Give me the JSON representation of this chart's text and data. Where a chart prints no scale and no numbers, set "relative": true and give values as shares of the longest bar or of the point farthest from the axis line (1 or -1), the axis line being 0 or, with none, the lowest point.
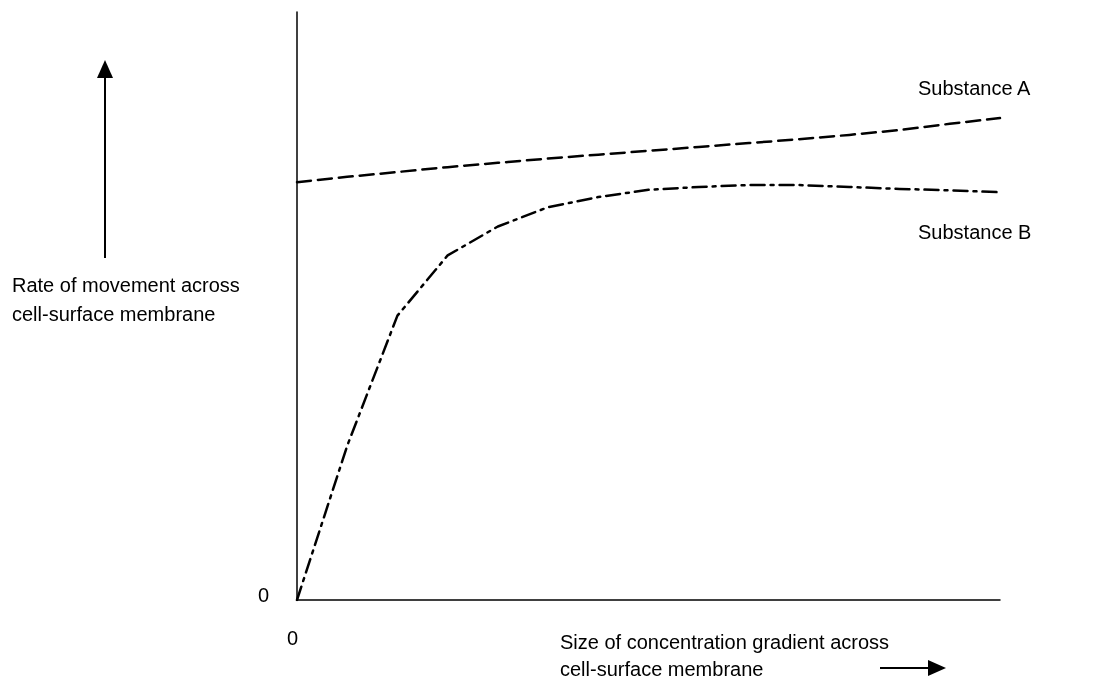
{
  "chart_data": {
    "type": "line",
    "relative": true,
    "xlabel": "Size of concentration gradient across cell-surface membrane",
    "ylabel": "Rate of movement across cell-surface membrane",
    "annotations": [
      "0",
      "0"
    ],
    "categories": [
      null,
      null,
      null,
      null,
      null,
      null,
      null,
      null,
      null,
      null,
      null,
      null,
      null,
      null,
      null
    ],
    "series": [
      {
        "name": "Substance A",
        "color": "#000000",
        "line_style": "dashed",
        "values": [
          0.867,
          0.878,
          0.888,
          0.898,
          0.907,
          0.916,
          0.924,
          0.932,
          0.94,
          0.948,
          0.956,
          0.965,
          0.975,
          0.988,
          1.0
        ]
      },
      {
        "name": "Substance B",
        "color": "#000000",
        "line_style": "dashdot",
        "values": [
          0,
          0.32,
          0.59,
          0.715,
          0.775,
          0.815,
          0.836,
          0.851,
          0.857,
          0.861,
          0.861,
          0.857,
          0.853,
          0.85,
          0.846
        ]
      }
    ],
    "grid": false,
    "legend": false,
    "marker": "none"
  }
}
